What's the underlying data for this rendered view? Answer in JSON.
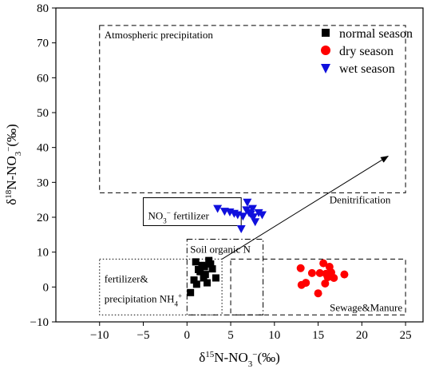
{
  "chart_data": {
    "type": "scatter",
    "xlabel_parts": [
      "δ",
      "15",
      "N-NO",
      "3",
      "−",
      "(‰)"
    ],
    "ylabel_parts": [
      "δ",
      "18",
      "N-NO",
      "3",
      "−",
      "(‰)"
    ],
    "xlim": [
      -15,
      27
    ],
    "ylim": [
      -10,
      80
    ],
    "x_ticks": [
      -10,
      -5,
      0,
      5,
      10,
      15,
      20,
      25
    ],
    "y_ticks": [
      -10,
      0,
      10,
      20,
      30,
      40,
      50,
      60,
      70,
      80
    ],
    "x_tick_labels": [
      "−10",
      "−5",
      "0",
      "5",
      "10",
      "15",
      "20",
      "25"
    ],
    "y_tick_labels": [
      "−10",
      "0",
      "10",
      "20",
      "30",
      "40",
      "50",
      "60",
      "70",
      "80"
    ],
    "grid": false,
    "legend_position": "top-right",
    "series": [
      {
        "name": "normal season",
        "marker": "square",
        "color": "#000000",
        "points": [
          [
            0.4,
            -1.6
          ],
          [
            0.8,
            2.0
          ],
          [
            1.0,
            7.2
          ],
          [
            1.1,
            0.8
          ],
          [
            1.3,
            5.0
          ],
          [
            1.5,
            4.4
          ],
          [
            1.7,
            6.2
          ],
          [
            1.9,
            2.6
          ],
          [
            2.0,
            5.8
          ],
          [
            2.1,
            3.6
          ],
          [
            2.3,
            1.2
          ],
          [
            2.5,
            7.6
          ],
          [
            2.7,
            6.6
          ],
          [
            2.9,
            5.2
          ],
          [
            3.3,
            2.6
          ]
        ]
      },
      {
        "name": "dry season",
        "marker": "circle",
        "color": "#ff0000",
        "points": [
          [
            13.0,
            5.4
          ],
          [
            13.1,
            0.6
          ],
          [
            13.6,
            1.2
          ],
          [
            14.3,
            4.0
          ],
          [
            15.0,
            -1.8
          ],
          [
            15.2,
            4.0
          ],
          [
            15.6,
            6.8
          ],
          [
            15.8,
            1.0
          ],
          [
            15.9,
            3.8
          ],
          [
            16.1,
            2.8
          ],
          [
            16.3,
            5.8
          ],
          [
            16.5,
            4.2
          ],
          [
            16.8,
            2.6
          ],
          [
            18.0,
            3.6
          ]
        ]
      },
      {
        "name": "wet season",
        "marker": "triangle-down",
        "color": "#1010dd",
        "points": [
          [
            3.5,
            22.6
          ],
          [
            4.3,
            21.8
          ],
          [
            4.9,
            21.6
          ],
          [
            5.4,
            21.2
          ],
          [
            5.8,
            20.8
          ],
          [
            6.2,
            16.8
          ],
          [
            6.4,
            20.4
          ],
          [
            6.8,
            22.2
          ],
          [
            6.9,
            24.4
          ],
          [
            7.1,
            21.4
          ],
          [
            7.3,
            21.0
          ],
          [
            7.5,
            22.6
          ],
          [
            7.6,
            20.2
          ],
          [
            7.8,
            18.8
          ],
          [
            8.2,
            21.4
          ],
          [
            8.6,
            20.8
          ]
        ]
      }
    ],
    "regions": [
      {
        "label": "Atmospheric precipitation",
        "x": [
          -10,
          25
        ],
        "y": [
          27,
          75
        ],
        "style": "dashed"
      },
      {
        "label_parts": [
          "NO",
          "3",
          "−",
          " fertilizer"
        ],
        "x": [
          -5,
          6.2
        ],
        "y": [
          17.6,
          25.6
        ],
        "style": "solid"
      },
      {
        "label": "Soil organic N",
        "x": [
          0,
          8.7
        ],
        "y": [
          -8,
          13.7
        ],
        "style": "dash-dot"
      },
      {
        "label_line1": "fertilizer&",
        "label_line2_parts": [
          "precipitation NH",
          "4",
          "+"
        ],
        "x": [
          -10,
          4
        ],
        "y": [
          -8,
          8
        ],
        "style": "dotted"
      },
      {
        "label": "Sewage&Manure",
        "x": [
          5,
          25
        ],
        "y": [
          -8,
          8
        ],
        "style": "dashed"
      }
    ],
    "annotations": [
      {
        "text": "Denitrification",
        "arrow_from": [
          4,
          8
        ],
        "arrow_to": [
          23,
          37.5
        ]
      }
    ]
  }
}
